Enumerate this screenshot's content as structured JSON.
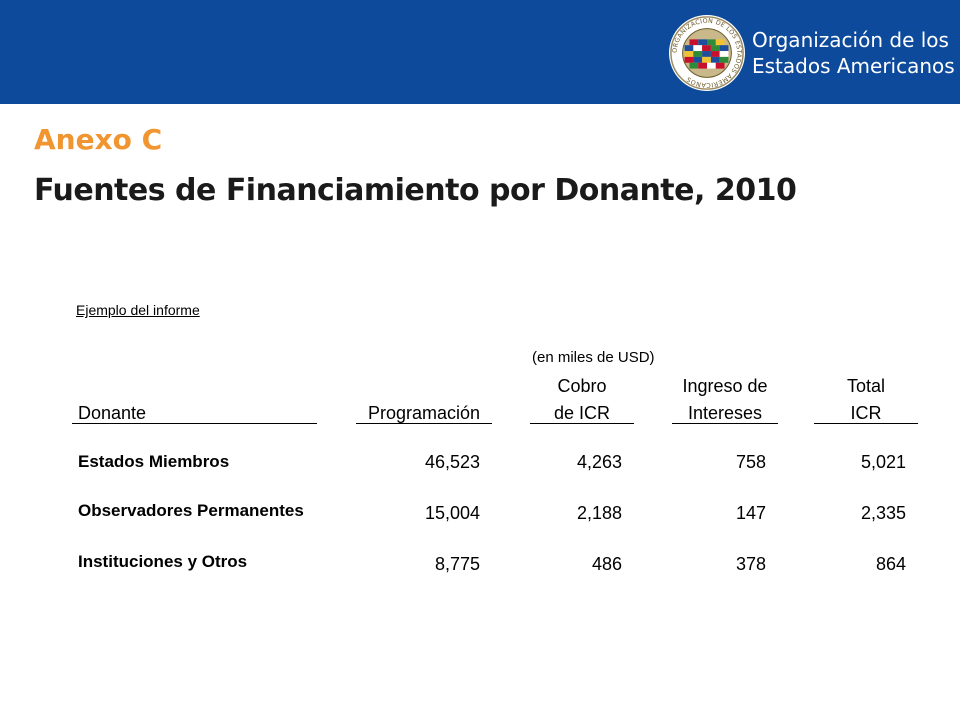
{
  "header": {
    "org_line1": "Organización de los",
    "org_line2": "Estados Americanos",
    "seal_text": "ORGANIZACION DE LOS ESTADOS AMERICANOS"
  },
  "slide": {
    "annex": "Anexo C",
    "title": "Fuentes de Financiamiento por Donante, 2010"
  },
  "report": {
    "sample_label": "Ejemplo del informe",
    "units": "(en miles de USD)",
    "columns": [
      {
        "line1": "",
        "line2": "Donante"
      },
      {
        "line1": "",
        "line2": "Programación"
      },
      {
        "line1": "Cobro",
        "line2": "de ICR"
      },
      {
        "line1": "Ingreso de",
        "line2": "Intereses"
      },
      {
        "line1": "Total",
        "line2": "ICR"
      }
    ],
    "rows": [
      {
        "donor": "Estados Miembros",
        "programming": "46,523",
        "icr": "4,263",
        "interest": "758",
        "total": "5,021"
      },
      {
        "donor": "Observadores Permanentes",
        "programming": "15,004",
        "icr": "2,188",
        "interest": "147",
        "total": "2,335"
      },
      {
        "donor": "Instituciones y Otros",
        "programming": "8,775",
        "icr": "486",
        "interest": "378",
        "total": "864"
      }
    ]
  },
  "colors": {
    "header_bg": "#0d4a9c",
    "annex": "#f0952f",
    "title": "#1a1a1a"
  }
}
